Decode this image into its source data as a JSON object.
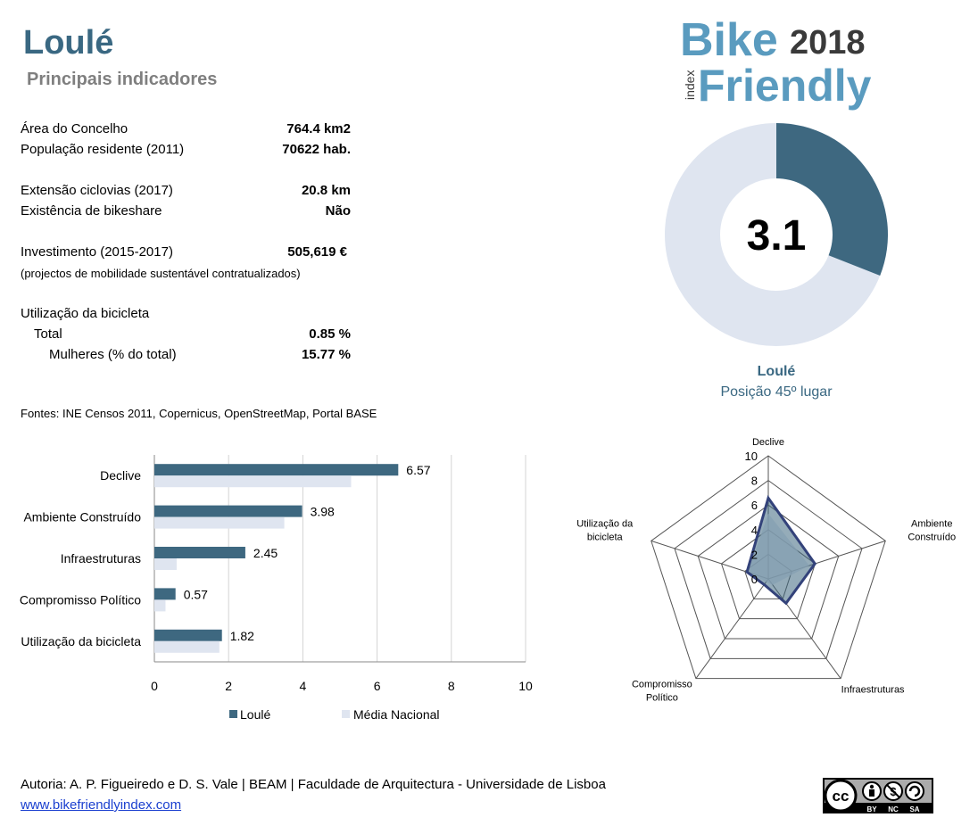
{
  "header": {
    "title": "Loulé",
    "subtitle": "Principais indicadores"
  },
  "logo": {
    "word1": "Bike",
    "year": "2018",
    "word2": "Friendly",
    "index": "index"
  },
  "indicators": [
    {
      "label": "Área do Concelho",
      "value": "764.4 km2"
    },
    {
      "label": "População residente (2011)",
      "value": "70622 hab."
    },
    {
      "label": "Extensão ciclovias (2017)",
      "value": "20.8 km"
    },
    {
      "label": "Existência de bikeshare",
      "value": "Não"
    },
    {
      "label": "Investimento (2015-2017)",
      "value": "505,619 €"
    },
    {
      "label": "(projectos de mobilidade sustentável contratualizados)"
    },
    {
      "label": "Utilização da bicicleta"
    },
    {
      "label": "Total",
      "value": "0.85 %"
    },
    {
      "label": "Mulheres (% do total)",
      "value": "15.77 %"
    }
  ],
  "sources": "Fontes: INE Censos 2011, Copernicus, OpenStreetMap,  Portal BASE",
  "score": {
    "value": "3.1",
    "fraction": 0.31,
    "name": "Loulé",
    "rank": "Posição 45º lugar"
  },
  "colors": {
    "primary": "#3e6880",
    "secondary": "#dfe5f0",
    "title": "#3a6882",
    "subtitle": "#7f7f7f"
  },
  "chart_data": [
    {
      "type": "bar",
      "orientation": "horizontal",
      "categories": [
        "Declive",
        "Ambiente Construído",
        "Infraestruturas",
        "Compromisso Político",
        "Utilização da bicicleta"
      ],
      "series": [
        {
          "name": "Loulé",
          "values": [
            6.57,
            3.98,
            2.45,
            0.57,
            1.82
          ],
          "labels": [
            "6.57",
            "3.98",
            "2.45",
            "0.57",
            "1.82"
          ]
        },
        {
          "name": "Média Nacional",
          "values": [
            5.3,
            3.5,
            0.6,
            0.3,
            1.75
          ]
        }
      ],
      "xlim": [
        0,
        10
      ],
      "xticks": [
        "0",
        "2",
        "4",
        "6",
        "8",
        "10"
      ],
      "grid": true,
      "legend": "bottom"
    },
    {
      "type": "radar",
      "axes": [
        "Declive",
        "Ambiente Construído",
        "Infraestruturas",
        "Compromisso Político",
        "Utilização da bicicleta"
      ],
      "axis_labels": [
        [
          "Declive"
        ],
        [
          "Ambiente",
          "Construído"
        ],
        [
          "Infraestruturas"
        ],
        [
          "Compromisso",
          "Político"
        ],
        [
          "Utilização da",
          "bicicleta"
        ]
      ],
      "ticks": [
        "0",
        "2",
        "4",
        "6",
        "8",
        "10"
      ],
      "range": [
        0,
        10
      ],
      "series": [
        {
          "values": [
            6.57,
            3.98,
            2.45,
            0.57,
            1.82
          ]
        },
        {
          "values": [
            5.3,
            3.5,
            0.6,
            0.3,
            1.75
          ]
        }
      ]
    }
  ],
  "footer": {
    "credits": "Autoria: A. P. Figueiredo e D. S. Vale | BEAM | Faculdade de Arquitectura - Universidade de Lisboa",
    "link": "www.bikefriendlyindex.com"
  },
  "license": {
    "cc": "cc",
    "by": "BY",
    "nc": "NC",
    "sa": "SA"
  }
}
